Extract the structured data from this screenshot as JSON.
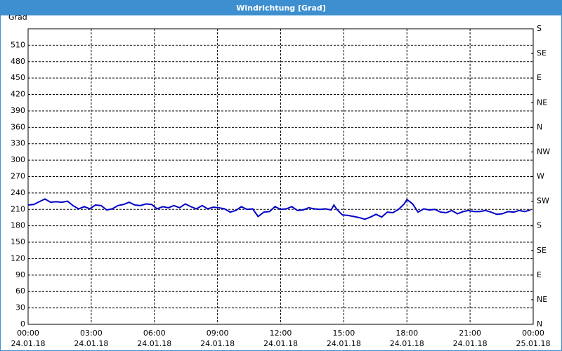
{
  "window_title": "Windrichtung [Grad]",
  "chart_data": {
    "type": "line",
    "ylabel": "Grad",
    "xlim": [
      0,
      24
    ],
    "xticks": [
      {
        "value": 0,
        "label": "00:00"
      },
      {
        "value": 3,
        "label": "03:00"
      },
      {
        "value": 6,
        "label": "06:00"
      },
      {
        "value": 9,
        "label": "09:00"
      },
      {
        "value": 12,
        "label": "12:00"
      },
      {
        "value": 15,
        "label": "15:00"
      },
      {
        "value": 18,
        "label": "18:00"
      },
      {
        "value": 21,
        "label": "21:00"
      },
      {
        "value": 24,
        "label": "00:00"
      }
    ],
    "xtick_dates": [
      "24.01.18",
      "24.01.18",
      "24.01.18",
      "24.01.18",
      "24.01.18",
      "24.01.18",
      "24.01.18",
      "24.01.18",
      "25.01.18"
    ],
    "ylim": [
      0,
      540
    ],
    "yticks": [
      0,
      30,
      60,
      90,
      120,
      150,
      180,
      210,
      240,
      270,
      300,
      330,
      360,
      390,
      420,
      450,
      480,
      510
    ],
    "y2lim": [
      0,
      540
    ],
    "y2ticks": [
      {
        "value": 0,
        "label": "N"
      },
      {
        "value": 45,
        "label": "NE"
      },
      {
        "value": 90,
        "label": "E"
      },
      {
        "value": 135,
        "label": "SE"
      },
      {
        "value": 180,
        "label": "S"
      },
      {
        "value": 225,
        "label": "SW"
      },
      {
        "value": 270,
        "label": "W"
      },
      {
        "value": 315,
        "label": "NW"
      },
      {
        "value": 360,
        "label": "N"
      },
      {
        "value": 405,
        "label": "NE"
      },
      {
        "value": 450,
        "label": "E"
      },
      {
        "value": 495,
        "label": "SE"
      },
      {
        "value": 540,
        "label": "S"
      }
    ],
    "grid": true,
    "x": [
      0,
      0.27,
      0.53,
      0.8,
      1.07,
      1.33,
      1.6,
      1.87,
      2.13,
      2.4,
      2.67,
      2.93,
      3.2,
      3.47,
      3.73,
      4,
      4.27,
      4.53,
      4.8,
      5.07,
      5.33,
      5.6,
      5.87,
      6.13,
      6.4,
      6.67,
      6.93,
      7.2,
      7.47,
      7.73,
      8,
      8.27,
      8.53,
      8.8,
      9.07,
      9.33,
      9.6,
      9.87,
      10.13,
      10.4,
      10.67,
      10.93,
      11.2,
      11.47,
      11.73,
      12,
      12.27,
      12.53,
      12.8,
      13.07,
      13.33,
      13.6,
      13.87,
      14.13,
      14.4,
      14.53,
      14.67,
      14.93,
      15.2,
      15.47,
      15.73,
      16,
      16.27,
      16.53,
      16.8,
      17.07,
      17.33,
      17.6,
      17.87,
      18,
      18.27,
      18.53,
      18.8,
      19.07,
      19.33,
      19.6,
      19.87,
      20.13,
      20.4,
      20.67,
      20.93,
      21.2,
      21.47,
      21.73,
      22,
      22.27,
      22.53,
      22.8,
      23.07,
      23.33,
      23.6,
      23.87
    ],
    "series": [
      {
        "color": "#0000c8",
        "values": [
          218,
          219,
          224,
          229,
          223,
          224,
          223,
          225,
          217,
          211,
          215,
          211,
          218,
          217,
          209,
          211,
          217,
          219,
          223,
          218,
          217,
          220,
          219,
          211,
          215,
          213,
          217,
          213,
          220,
          215,
          211,
          217,
          211,
          214,
          213,
          211,
          205,
          208,
          215,
          210,
          211,
          197,
          205,
          206,
          215,
          210,
          211,
          215,
          208,
          209,
          213,
          211,
          210,
          211,
          209,
          218,
          210,
          200,
          199,
          197,
          195,
          192,
          196,
          201,
          196,
          205,
          204,
          210,
          220,
          228,
          220,
          205,
          211,
          209,
          210,
          205,
          204,
          208,
          202,
          206,
          208,
          206,
          206,
          208,
          205,
          201,
          202,
          206,
          205,
          208,
          206,
          209
        ]
      }
    ]
  }
}
